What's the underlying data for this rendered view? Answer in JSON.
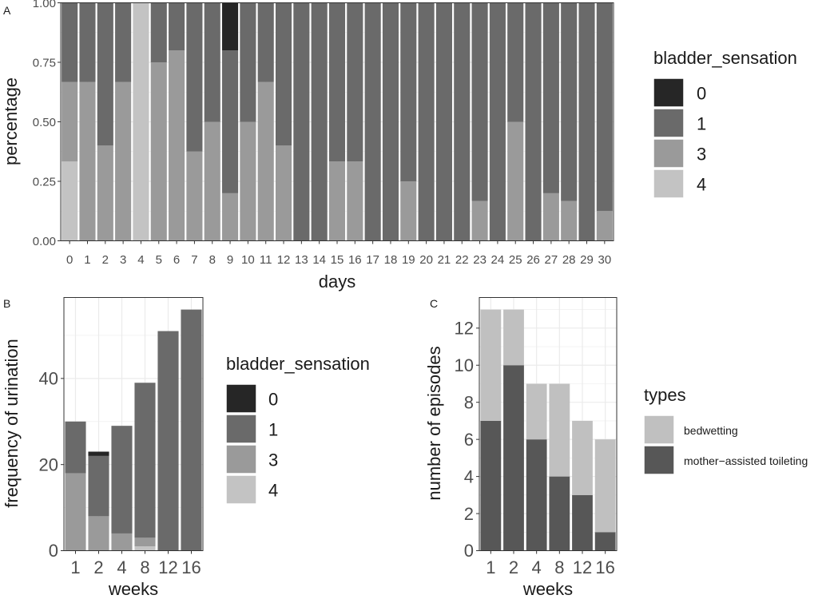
{
  "colors": {
    "level_0": "#262626",
    "level_1": "#6a6a6a",
    "level_3": "#9a9a9a",
    "level_4": "#c3c3c3",
    "bedwetting": "#c0c0c0",
    "mother_assisted": "#575757",
    "grid": "#ebebeb",
    "panel_border": "#333333",
    "text": "#1a1a1a"
  },
  "chart_data": [
    {
      "panel_label": "A",
      "type": "bar",
      "stacked": true,
      "normalized": true,
      "title": "",
      "xlabel": "days",
      "ylabel": "percentage",
      "ylim": [
        0,
        1
      ],
      "yticks": [
        0,
        0.25,
        0.5,
        0.75,
        1.0
      ],
      "ytick_labels": [
        "0.00",
        "0.25",
        "0.50",
        "0.75",
        "1.00"
      ],
      "grid": true,
      "legend_title": "bladder_sensation",
      "legend_position": "right",
      "stack_order_bottom_to_top": [
        "4",
        "3",
        "1",
        "0"
      ],
      "categories": [
        "0",
        "1",
        "2",
        "3",
        "4",
        "5",
        "6",
        "7",
        "8",
        "9",
        "10",
        "11",
        "12",
        "13",
        "14",
        "15",
        "16",
        "17",
        "18",
        "19",
        "20",
        "21",
        "22",
        "23",
        "24",
        "25",
        "26",
        "27",
        "28",
        "29",
        "30"
      ],
      "series": [
        {
          "name": "0",
          "color_key": "level_0",
          "values": [
            0,
            0,
            0,
            0,
            0,
            0,
            0,
            0,
            0,
            0.2,
            0,
            0,
            0,
            0,
            0,
            0,
            0,
            0,
            0,
            0,
            0,
            0,
            0,
            0,
            0,
            0,
            0,
            0,
            0,
            0,
            0
          ]
        },
        {
          "name": "1",
          "color_key": "level_1",
          "values": [
            0.333,
            0.333,
            0.6,
            0.333,
            0,
            0.25,
            0.2,
            0.625,
            0.5,
            0.6,
            0.5,
            0.333,
            0.6,
            1,
            1,
            0.667,
            0.667,
            1,
            1,
            0.75,
            1,
            1,
            1,
            0.833,
            1,
            0.5,
            1,
            0.8,
            0.833,
            1,
            0.875
          ]
        },
        {
          "name": "3",
          "color_key": "level_3",
          "values": [
            0.334,
            0.667,
            0.4,
            0.667,
            0,
            0.75,
            0.8,
            0.375,
            0.5,
            0.2,
            0.5,
            0.667,
            0.4,
            0,
            0,
            0.333,
            0.333,
            0,
            0,
            0.25,
            0,
            0,
            0,
            0.167,
            0,
            0.5,
            0,
            0.2,
            0.167,
            0,
            0.125
          ]
        },
        {
          "name": "4",
          "color_key": "level_4",
          "values": [
            0.333,
            0,
            0,
            0,
            1,
            0,
            0,
            0,
            0,
            0,
            0,
            0,
            0,
            0,
            0,
            0,
            0,
            0,
            0,
            0,
            0,
            0,
            0,
            0,
            0,
            0,
            0,
            0,
            0,
            0,
            0
          ]
        }
      ]
    },
    {
      "panel_label": "B",
      "type": "bar",
      "stacked": true,
      "title": "",
      "xlabel": "weeks",
      "ylabel": "frequency of urination",
      "ylim": [
        0,
        58.8
      ],
      "yticks": [
        0,
        20,
        40
      ],
      "ytick_labels": [
        "0",
        "20",
        "40"
      ],
      "grid": true,
      "legend_title": "bladder_sensation",
      "legend_position": "right",
      "stack_order_bottom_to_top": [
        "4",
        "3",
        "1",
        "0"
      ],
      "categories": [
        "1",
        "2",
        "4",
        "8",
        "12",
        "16"
      ],
      "series": [
        {
          "name": "0",
          "color_key": "level_0",
          "values": [
            0,
            1,
            0,
            0,
            0,
            0
          ]
        },
        {
          "name": "1",
          "color_key": "level_1",
          "values": [
            12,
            14,
            25,
            36,
            51,
            56
          ]
        },
        {
          "name": "3",
          "color_key": "level_3",
          "values": [
            18,
            8,
            4,
            2,
            0,
            0
          ]
        },
        {
          "name": "4",
          "color_key": "level_4",
          "values": [
            0,
            0,
            0,
            1,
            0,
            0
          ]
        }
      ]
    },
    {
      "panel_label": "C",
      "type": "bar",
      "stacked": true,
      "title": "",
      "xlabel": "weeks",
      "ylabel": "number of episodes",
      "ylim": [
        0,
        13.65
      ],
      "yticks": [
        0,
        2,
        4,
        6,
        8,
        10,
        12
      ],
      "ytick_labels": [
        "0",
        "2",
        "4",
        "6",
        "8",
        "10",
        "12"
      ],
      "grid": true,
      "legend_title": "types",
      "legend_position": "right",
      "stack_order_bottom_to_top": [
        "mother−assisted toileting",
        "bedwetting"
      ],
      "categories": [
        "1",
        "2",
        "4",
        "8",
        "12",
        "16"
      ],
      "series": [
        {
          "name": "bedwetting",
          "color_key": "bedwetting",
          "values": [
            6,
            3,
            3,
            5,
            4,
            5
          ]
        },
        {
          "name": "mother−assisted toileting",
          "color_key": "mother_assisted",
          "values": [
            7,
            10,
            6,
            4,
            3,
            1
          ]
        }
      ]
    }
  ]
}
